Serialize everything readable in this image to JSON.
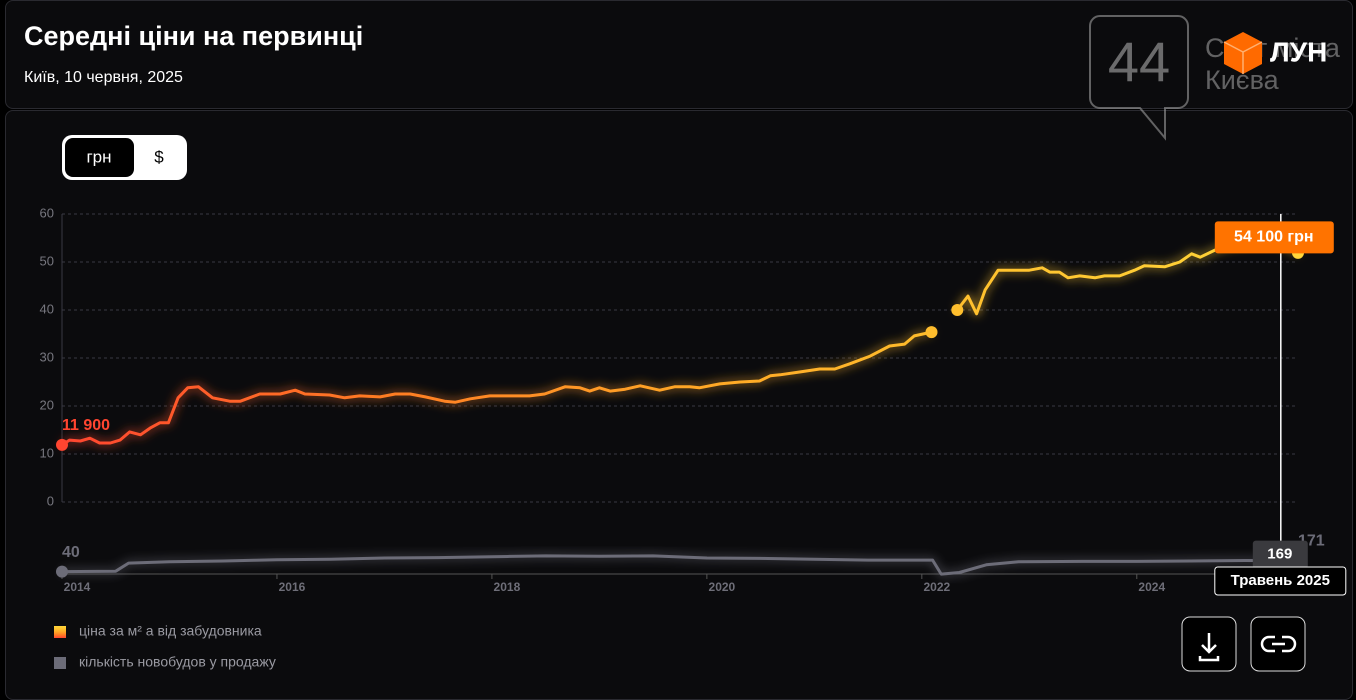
{
  "header": {
    "title": "Середні ціни на первинці",
    "subtitle": "Київ, 10 червня, 2025",
    "logo": "ЛУН"
  },
  "watermark": {
    "number": "44",
    "line1": "Сайт міста",
    "line2": "Києва"
  },
  "toggle": [
    "грн",
    "$"
  ],
  "chart_data": {
    "type": "line",
    "xlim": [
      2014,
      2025.5
    ],
    "xticks": [
      2014,
      2016,
      2018,
      2020,
      2022,
      2024
    ],
    "ylim": [
      0,
      60
    ],
    "yticks": [
      0,
      10,
      20,
      30,
      40,
      50,
      60
    ],
    "y2lim": [
      0,
      400
    ],
    "grid": true,
    "crosshair": {
      "x": 2025.34,
      "label": "Травень 2025"
    },
    "series": [
      {
        "name": "ціна за м² а від забудовника",
        "colors": [
          "#ff4530",
          "#ff7a24",
          "#ffa526",
          "#ffc22e",
          "#ffd63a"
        ],
        "x": [
          2014.0,
          2014.07,
          2014.17,
          2014.26,
          2014.35,
          2014.45,
          2014.54,
          2014.63,
          2014.73,
          2014.82,
          2014.91,
          2014.99,
          2015.08,
          2015.17,
          2015.27,
          2015.4,
          2015.56,
          2015.66,
          2015.84,
          2016.03,
          2016.17,
          2016.26,
          2016.49,
          2016.63,
          2016.77,
          2016.96,
          2017.1,
          2017.24,
          2017.38,
          2017.56,
          2017.66,
          2017.8,
          2017.98,
          2018.17,
          2018.35,
          2018.49,
          2018.68,
          2018.82,
          2018.91,
          2019.0,
          2019.1,
          2019.24,
          2019.38,
          2019.56,
          2019.7,
          2019.84,
          2019.93,
          2020.12,
          2020.31,
          2020.49,
          2020.59,
          2020.68,
          2020.87,
          2021.05,
          2021.19,
          2021.33,
          2021.52,
          2021.7,
          2021.84,
          2021.93,
          2022.09,
          2022.25,
          2022.33,
          2022.43,
          2022.51,
          2022.59,
          2022.71,
          2022.82,
          2023.0,
          2023.12,
          2023.19,
          2023.28,
          2023.36,
          2023.47,
          2023.61,
          2023.7,
          2023.84,
          2023.98,
          2024.07,
          2024.26,
          2024.4,
          2024.51,
          2024.59,
          2024.73,
          2024.87,
          2025.05,
          2025.34,
          2025.5
        ],
        "values": [
          11.9,
          12.9,
          12.7,
          13.3,
          12.3,
          12.3,
          12.9,
          14.6,
          14,
          15.4,
          16.5,
          16.5,
          21.7,
          23.8,
          24,
          21.7,
          21,
          21,
          22.5,
          22.5,
          23.3,
          22.5,
          22.3,
          21.7,
          22.1,
          21.9,
          22.5,
          22.5,
          21.9,
          21,
          20.8,
          21.5,
          22.1,
          22.1,
          22.1,
          22.5,
          24,
          23.8,
          23.1,
          23.8,
          23.1,
          23.5,
          24.2,
          23.3,
          24,
          24,
          23.8,
          24.6,
          25,
          25.2,
          26.3,
          26.5,
          27.1,
          27.7,
          27.7,
          28.8,
          30.4,
          32.5,
          32.9,
          34.6,
          35.4,
          null,
          40,
          42.9,
          39.2,
          44.2,
          48.3,
          48.3,
          48.3,
          48.8,
          47.9,
          47.9,
          46.7,
          47.1,
          46.7,
          47.1,
          47.1,
          48.3,
          49.2,
          49,
          50,
          51.7,
          51,
          52.5,
          53.5,
          54,
          54.1,
          51.9
        ],
        "value_labels": [
          "11 900",
          null,
          null,
          null,
          null,
          null,
          null,
          null,
          null,
          null,
          null,
          null,
          null,
          null,
          null,
          null,
          null,
          null,
          null,
          null,
          null,
          null,
          null,
          null,
          null,
          null,
          null,
          null,
          null,
          null,
          null,
          null,
          null,
          null,
          null,
          null,
          null,
          null,
          null,
          null,
          null,
          null,
          null,
          null,
          null,
          null,
          null,
          null,
          null,
          null,
          null,
          null,
          null,
          null,
          null,
          null,
          null,
          null,
          null,
          null,
          null,
          null,
          null,
          null,
          null,
          null,
          null,
          null,
          null,
          null,
          null,
          null,
          null,
          null,
          null,
          null,
          null,
          null,
          null,
          null,
          null,
          null,
          null,
          null,
          null,
          null,
          "54 100 грн",
          null
        ]
      },
      {
        "name": "кількість новобудов у продажу",
        "color": "#6c6c78",
        "axis": "y2",
        "x": [
          2014.0,
          2014.5,
          2014.62,
          2015.0,
          2015.5,
          2016.0,
          2016.5,
          2017.0,
          2017.5,
          2018.0,
          2018.5,
          2019.0,
          2019.5,
          2020.0,
          2020.5,
          2021.0,
          2021.5,
          2022.1,
          2022.18,
          2022.35,
          2022.6,
          2022.9,
          2023.5,
          2024.0,
          2024.5,
          2025.0,
          2025.34,
          2025.5
        ],
        "values": [
          40,
          45,
          140,
          155,
          165,
          180,
          185,
          200,
          205,
          215,
          225,
          220,
          225,
          200,
          195,
          185,
          175,
          175,
          10,
          30,
          120,
          155,
          160,
          160,
          165,
          170,
          169,
          171
        ],
        "value_labels": [
          "40",
          null,
          null,
          null,
          null,
          null,
          null,
          null,
          null,
          null,
          null,
          null,
          null,
          null,
          null,
          null,
          null,
          null,
          null,
          null,
          null,
          null,
          null,
          null,
          null,
          null,
          "169",
          "171"
        ]
      }
    ]
  }
}
